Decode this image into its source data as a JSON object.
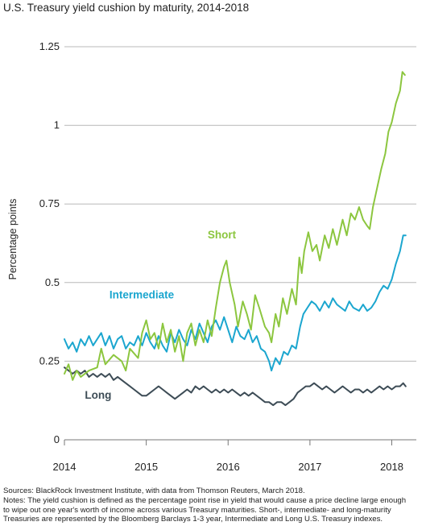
{
  "chart_data": {
    "type": "line",
    "title": "U.S. Treasury yield cushion by maturity, 2014-2018",
    "ylabel": "Percentage points",
    "ylim": [
      0,
      1.25
    ],
    "yticks": [
      {
        "value": 0,
        "label": "0"
      },
      {
        "value": 0.25,
        "label": "0.25"
      },
      {
        "value": 0.5,
        "label": "0.5"
      },
      {
        "value": 0.75,
        "label": "0.75"
      },
      {
        "value": 1,
        "label": "1"
      },
      {
        "value": 1.25,
        "label": "1.25"
      }
    ],
    "xlim": [
      2014,
      2018.2
    ],
    "xticks": [
      {
        "value": 2014,
        "label": "2014"
      },
      {
        "value": 2015,
        "label": "2015"
      },
      {
        "value": 2016,
        "label": "2016"
      },
      {
        "value": 2017,
        "label": "2017"
      },
      {
        "value": 2018,
        "label": "2018"
      }
    ],
    "grid": "horizontal",
    "series": [
      {
        "name": "Short",
        "color": "#8cc63f",
        "points": [
          [
            2014.0,
            0.21
          ],
          [
            2014.05,
            0.24
          ],
          [
            2014.1,
            0.19
          ],
          [
            2014.15,
            0.22
          ],
          [
            2014.2,
            0.2
          ],
          [
            2014.3,
            0.22
          ],
          [
            2014.4,
            0.23
          ],
          [
            2014.45,
            0.29
          ],
          [
            2014.5,
            0.24
          ],
          [
            2014.6,
            0.27
          ],
          [
            2014.7,
            0.25
          ],
          [
            2014.75,
            0.22
          ],
          [
            2014.8,
            0.29
          ],
          [
            2014.9,
            0.26
          ],
          [
            2014.95,
            0.34
          ],
          [
            2015.0,
            0.38
          ],
          [
            2015.05,
            0.32
          ],
          [
            2015.1,
            0.34
          ],
          [
            2015.15,
            0.29
          ],
          [
            2015.2,
            0.37
          ],
          [
            2015.25,
            0.31
          ],
          [
            2015.3,
            0.35
          ],
          [
            2015.35,
            0.28
          ],
          [
            2015.4,
            0.33
          ],
          [
            2015.45,
            0.25
          ],
          [
            2015.5,
            0.34
          ],
          [
            2015.55,
            0.37
          ],
          [
            2015.6,
            0.3
          ],
          [
            2015.65,
            0.35
          ],
          [
            2015.7,
            0.31
          ],
          [
            2015.75,
            0.38
          ],
          [
            2015.8,
            0.33
          ],
          [
            2015.85,
            0.42
          ],
          [
            2015.9,
            0.5
          ],
          [
            2015.95,
            0.55
          ],
          [
            2015.98,
            0.57
          ],
          [
            2016.02,
            0.5
          ],
          [
            2016.08,
            0.43
          ],
          [
            2016.12,
            0.36
          ],
          [
            2016.18,
            0.44
          ],
          [
            2016.23,
            0.4
          ],
          [
            2016.28,
            0.35
          ],
          [
            2016.33,
            0.46
          ],
          [
            2016.38,
            0.42
          ],
          [
            2016.45,
            0.36
          ],
          [
            2016.5,
            0.34
          ],
          [
            2016.53,
            0.31
          ],
          [
            2016.58,
            0.4
          ],
          [
            2016.62,
            0.36
          ],
          [
            2016.67,
            0.45
          ],
          [
            2016.72,
            0.4
          ],
          [
            2016.78,
            0.48
          ],
          [
            2016.83,
            0.43
          ],
          [
            2016.87,
            0.58
          ],
          [
            2016.9,
            0.53
          ],
          [
            2016.93,
            0.6
          ],
          [
            2016.98,
            0.66
          ],
          [
            2017.03,
            0.6
          ],
          [
            2017.08,
            0.62
          ],
          [
            2017.12,
            0.57
          ],
          [
            2017.18,
            0.65
          ],
          [
            2017.23,
            0.61
          ],
          [
            2017.28,
            0.67
          ],
          [
            2017.33,
            0.62
          ],
          [
            2017.4,
            0.7
          ],
          [
            2017.45,
            0.65
          ],
          [
            2017.5,
            0.72
          ],
          [
            2017.55,
            0.7
          ],
          [
            2017.6,
            0.74
          ],
          [
            2017.65,
            0.7
          ],
          [
            2017.7,
            0.68
          ],
          [
            2017.73,
            0.67
          ],
          [
            2017.77,
            0.74
          ],
          [
            2017.82,
            0.8
          ],
          [
            2017.87,
            0.86
          ],
          [
            2017.92,
            0.91
          ],
          [
            2017.96,
            0.98
          ],
          [
            2018.0,
            1.01
          ],
          [
            2018.05,
            1.07
          ],
          [
            2018.1,
            1.11
          ],
          [
            2018.13,
            1.17
          ],
          [
            2018.16,
            1.16
          ]
        ]
      },
      {
        "name": "Intermediate",
        "color": "#1ba6cf",
        "points": [
          [
            2014.0,
            0.32
          ],
          [
            2014.05,
            0.29
          ],
          [
            2014.1,
            0.31
          ],
          [
            2014.15,
            0.28
          ],
          [
            2014.2,
            0.32
          ],
          [
            2014.25,
            0.3
          ],
          [
            2014.3,
            0.33
          ],
          [
            2014.35,
            0.3
          ],
          [
            2014.4,
            0.32
          ],
          [
            2014.45,
            0.34
          ],
          [
            2014.5,
            0.3
          ],
          [
            2014.55,
            0.33
          ],
          [
            2014.6,
            0.29
          ],
          [
            2014.65,
            0.32
          ],
          [
            2014.7,
            0.33
          ],
          [
            2014.75,
            0.29
          ],
          [
            2014.8,
            0.31
          ],
          [
            2014.85,
            0.3
          ],
          [
            2014.9,
            0.33
          ],
          [
            2014.95,
            0.3
          ],
          [
            2015.0,
            0.34
          ],
          [
            2015.05,
            0.31
          ],
          [
            2015.1,
            0.29
          ],
          [
            2015.15,
            0.33
          ],
          [
            2015.2,
            0.3
          ],
          [
            2015.25,
            0.28
          ],
          [
            2015.3,
            0.34
          ],
          [
            2015.35,
            0.31
          ],
          [
            2015.4,
            0.35
          ],
          [
            2015.45,
            0.32
          ],
          [
            2015.5,
            0.3
          ],
          [
            2015.55,
            0.35
          ],
          [
            2015.6,
            0.32
          ],
          [
            2015.65,
            0.37
          ],
          [
            2015.7,
            0.34
          ],
          [
            2015.75,
            0.31
          ],
          [
            2015.8,
            0.36
          ],
          [
            2015.85,
            0.38
          ],
          [
            2015.9,
            0.35
          ],
          [
            2015.95,
            0.39
          ],
          [
            2016.0,
            0.35
          ],
          [
            2016.05,
            0.31
          ],
          [
            2016.1,
            0.36
          ],
          [
            2016.15,
            0.33
          ],
          [
            2016.2,
            0.32
          ],
          [
            2016.25,
            0.35
          ],
          [
            2016.3,
            0.31
          ],
          [
            2016.35,
            0.33
          ],
          [
            2016.4,
            0.29
          ],
          [
            2016.45,
            0.28
          ],
          [
            2016.5,
            0.25
          ],
          [
            2016.53,
            0.22
          ],
          [
            2016.58,
            0.26
          ],
          [
            2016.63,
            0.24
          ],
          [
            2016.68,
            0.28
          ],
          [
            2016.73,
            0.27
          ],
          [
            2016.78,
            0.3
          ],
          [
            2016.83,
            0.29
          ],
          [
            2016.88,
            0.36
          ],
          [
            2016.92,
            0.4
          ],
          [
            2016.97,
            0.42
          ],
          [
            2017.02,
            0.44
          ],
          [
            2017.07,
            0.43
          ],
          [
            2017.12,
            0.41
          ],
          [
            2017.18,
            0.44
          ],
          [
            2017.23,
            0.42
          ],
          [
            2017.28,
            0.45
          ],
          [
            2017.33,
            0.43
          ],
          [
            2017.38,
            0.42
          ],
          [
            2017.43,
            0.41
          ],
          [
            2017.48,
            0.44
          ],
          [
            2017.53,
            0.42
          ],
          [
            2017.6,
            0.41
          ],
          [
            2017.65,
            0.43
          ],
          [
            2017.7,
            0.41
          ],
          [
            2017.75,
            0.42
          ],
          [
            2017.8,
            0.44
          ],
          [
            2017.85,
            0.47
          ],
          [
            2017.9,
            0.49
          ],
          [
            2017.95,
            0.48
          ],
          [
            2018.0,
            0.51
          ],
          [
            2018.05,
            0.56
          ],
          [
            2018.1,
            0.6
          ],
          [
            2018.14,
            0.65
          ],
          [
            2018.17,
            0.65
          ]
        ]
      },
      {
        "name": "Long",
        "color": "#3d4c56",
        "points": [
          [
            2014.0,
            0.23
          ],
          [
            2014.05,
            0.22
          ],
          [
            2014.1,
            0.21
          ],
          [
            2014.15,
            0.22
          ],
          [
            2014.2,
            0.21
          ],
          [
            2014.25,
            0.22
          ],
          [
            2014.3,
            0.2
          ],
          [
            2014.35,
            0.21
          ],
          [
            2014.4,
            0.2
          ],
          [
            2014.45,
            0.21
          ],
          [
            2014.5,
            0.2
          ],
          [
            2014.55,
            0.21
          ],
          [
            2014.6,
            0.19
          ],
          [
            2014.65,
            0.2
          ],
          [
            2014.7,
            0.19
          ],
          [
            2014.75,
            0.18
          ],
          [
            2014.8,
            0.17
          ],
          [
            2014.85,
            0.16
          ],
          [
            2014.9,
            0.15
          ],
          [
            2014.95,
            0.14
          ],
          [
            2015.0,
            0.14
          ],
          [
            2015.05,
            0.15
          ],
          [
            2015.1,
            0.16
          ],
          [
            2015.15,
            0.17
          ],
          [
            2015.2,
            0.16
          ],
          [
            2015.25,
            0.15
          ],
          [
            2015.3,
            0.14
          ],
          [
            2015.35,
            0.13
          ],
          [
            2015.4,
            0.14
          ],
          [
            2015.45,
            0.15
          ],
          [
            2015.5,
            0.16
          ],
          [
            2015.55,
            0.15
          ],
          [
            2015.6,
            0.17
          ],
          [
            2015.65,
            0.16
          ],
          [
            2015.7,
            0.17
          ],
          [
            2015.75,
            0.16
          ],
          [
            2015.8,
            0.15
          ],
          [
            2015.85,
            0.16
          ],
          [
            2015.9,
            0.15
          ],
          [
            2015.95,
            0.16
          ],
          [
            2016.0,
            0.15
          ],
          [
            2016.05,
            0.16
          ],
          [
            2016.1,
            0.15
          ],
          [
            2016.15,
            0.14
          ],
          [
            2016.2,
            0.15
          ],
          [
            2016.25,
            0.14
          ],
          [
            2016.3,
            0.15
          ],
          [
            2016.35,
            0.14
          ],
          [
            2016.4,
            0.13
          ],
          [
            2016.45,
            0.12
          ],
          [
            2016.5,
            0.12
          ],
          [
            2016.55,
            0.11
          ],
          [
            2016.6,
            0.12
          ],
          [
            2016.65,
            0.12
          ],
          [
            2016.7,
            0.11
          ],
          [
            2016.75,
            0.12
          ],
          [
            2016.8,
            0.13
          ],
          [
            2016.85,
            0.15
          ],
          [
            2016.9,
            0.16
          ],
          [
            2016.95,
            0.17
          ],
          [
            2017.0,
            0.17
          ],
          [
            2017.05,
            0.18
          ],
          [
            2017.1,
            0.17
          ],
          [
            2017.15,
            0.16
          ],
          [
            2017.2,
            0.17
          ],
          [
            2017.25,
            0.16
          ],
          [
            2017.3,
            0.15
          ],
          [
            2017.35,
            0.16
          ],
          [
            2017.4,
            0.17
          ],
          [
            2017.45,
            0.16
          ],
          [
            2017.5,
            0.15
          ],
          [
            2017.55,
            0.16
          ],
          [
            2017.6,
            0.16
          ],
          [
            2017.65,
            0.15
          ],
          [
            2017.7,
            0.16
          ],
          [
            2017.75,
            0.15
          ],
          [
            2017.8,
            0.16
          ],
          [
            2017.85,
            0.17
          ],
          [
            2017.9,
            0.16
          ],
          [
            2017.95,
            0.17
          ],
          [
            2018.0,
            0.16
          ],
          [
            2018.05,
            0.17
          ],
          [
            2018.1,
            0.17
          ],
          [
            2018.14,
            0.18
          ],
          [
            2018.17,
            0.17
          ]
        ]
      }
    ],
    "labels": [
      {
        "text": "Short",
        "series": "Short",
        "x": 2015.75,
        "y": 0.64
      },
      {
        "text": "Intermediate",
        "series": "Intermediate",
        "x": 2014.55,
        "y": 0.45
      },
      {
        "text": "Long",
        "series": "Long",
        "x": 2014.25,
        "y": 0.13
      }
    ]
  },
  "footer": {
    "sources": "Sources: BlackRock Investment Institute, with data from Thomson Reuters, March 2018.",
    "notes_1": "Notes: The yield cushion is defined as the percentage point rise in yield that would cause a price decline large enough",
    "notes_2": "to wipe out one year's worth of income across various Treasury maturities. Short-, intermediate- and long-maturity",
    "notes_3": "Treasuries are represented by the Bloomberg Barclays 1-3 year, Intermediate and Long U.S. Treasury indexes."
  }
}
